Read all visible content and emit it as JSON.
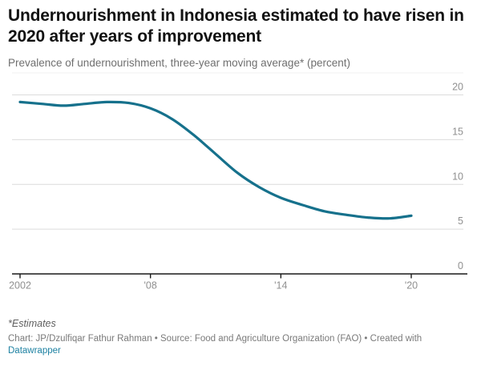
{
  "header": {
    "title": "Undernourishment in Indonesia estimated to have risen in 2020 after years of improvement",
    "subtitle": "Prevalence of undernourishment, three-year moving average* (percent)"
  },
  "chart_data": {
    "type": "line",
    "title": "Undernourishment in Indonesia estimated to have risen in 2020 after years of improvement",
    "subtitle": "Prevalence of undernourishment, three-year moving average* (percent)",
    "x": [
      2002,
      2003,
      2004,
      2005,
      2006,
      2007,
      2008,
      2009,
      2010,
      2011,
      2012,
      2013,
      2014,
      2015,
      2016,
      2017,
      2018,
      2019,
      2020
    ],
    "series": [
      {
        "name": "Prevalence of undernourishment (percent)",
        "values": [
          19.2,
          19.0,
          18.8,
          19.0,
          19.2,
          19.1,
          18.5,
          17.3,
          15.5,
          13.4,
          11.3,
          9.7,
          8.5,
          7.7,
          7.0,
          6.6,
          6.3,
          6.2,
          6.5
        ]
      }
    ],
    "xlabel": "",
    "ylabel": "percent",
    "xlim": [
      2002,
      2020
    ],
    "ylim": [
      0,
      21.5
    ],
    "y_ticks": [
      0,
      5,
      10,
      15,
      20
    ],
    "x_ticks": [
      {
        "value": 2002,
        "label": "2002"
      },
      {
        "value": 2008,
        "label": "'08"
      },
      {
        "value": 2014,
        "label": "'14"
      },
      {
        "value": 2020,
        "label": "'20"
      }
    ],
    "grid": "horizontal",
    "legend": "none",
    "colors": {
      "line": "#16718c",
      "gridline": "#dcdcdc",
      "axis": "#1a1a1a",
      "tick_label": "#909090",
      "plot_top_border": "#f0f0f0"
    }
  },
  "footer": {
    "footnote": "*Estimates",
    "attribution": "Chart: JP/Dzulfiqar Fathur Rahman • Source: Food and Agriculture Organization (FAO) • Created with",
    "link_label": "Datawrapper",
    "link_color": "#1d81a2"
  }
}
